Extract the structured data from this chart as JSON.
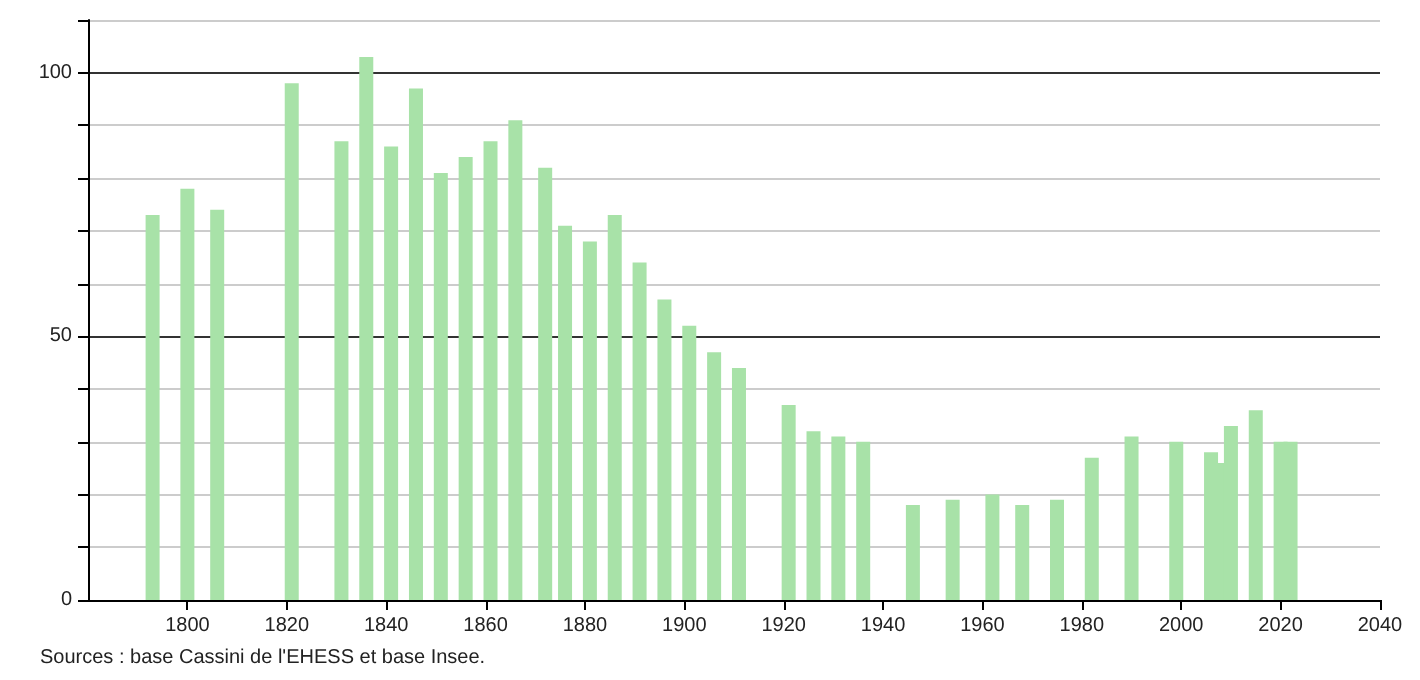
{
  "chart_data": {
    "type": "bar",
    "color": "#a8e2a8",
    "x": [
      1793,
      1800,
      1806,
      1821,
      1831,
      1836,
      1841,
      1846,
      1851,
      1856,
      1861,
      1866,
      1872,
      1876,
      1881,
      1886,
      1891,
      1896,
      1901,
      1906,
      1911,
      1921,
      1926,
      1931,
      1936,
      1946,
      1954,
      1962,
      1968,
      1975,
      1982,
      1990,
      1999,
      2006,
      2008,
      2010,
      2015,
      2020,
      2022
    ],
    "values": [
      73,
      78,
      74,
      98,
      87,
      103,
      86,
      97,
      81,
      84,
      87,
      91,
      82,
      71,
      68,
      73,
      64,
      57,
      52,
      47,
      44,
      37,
      32,
      31,
      30,
      18,
      19,
      20,
      18,
      19,
      27,
      31,
      30,
      28,
      26,
      33,
      36,
      30,
      30
    ],
    "xlim": [
      1780,
      2040
    ],
    "xticks": [
      1800,
      1820,
      1840,
      1860,
      1880,
      1900,
      1920,
      1940,
      1960,
      1980,
      2000,
      2020,
      2040
    ],
    "ylim": [
      0,
      110
    ],
    "yticks": [
      0,
      {
        "value": 10,
        "label": null
      },
      {
        "value": 20,
        "label": null
      },
      {
        "value": 30,
        "label": null
      },
      {
        "value": 40,
        "label": null
      },
      50,
      {
        "value": 60,
        "label": null
      },
      {
        "value": 70,
        "label": null
      },
      {
        "value": 80,
        "label": null
      },
      {
        "value": 90,
        "label": null
      },
      100,
      {
        "value": 110,
        "label": null
      }
    ],
    "grid": "y",
    "annotations": [
      "Sources : base Cassini de l'EHESS et base Insee."
    ]
  }
}
